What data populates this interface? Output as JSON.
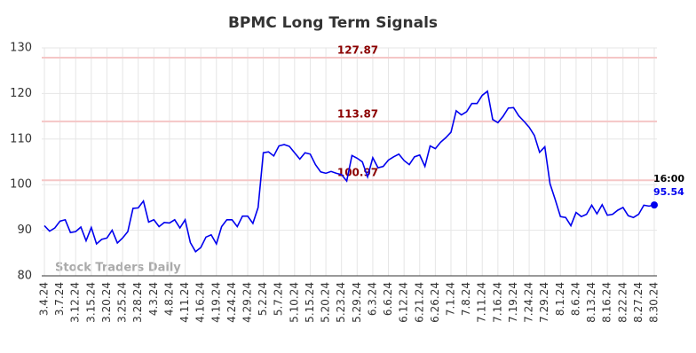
{
  "chart_data": {
    "type": "line",
    "title": "BPMC Long Term Signals",
    "categories": [
      "3.4.24",
      null,
      null,
      "3.7.24",
      null,
      null,
      "3.12.24",
      null,
      null,
      "3.15.24",
      null,
      null,
      "3.20.24",
      null,
      null,
      "3.25.24",
      null,
      null,
      "3.28.24",
      null,
      null,
      "4.3.24",
      null,
      null,
      "4.8.24",
      null,
      null,
      "4.11.24",
      null,
      null,
      "4.16.24",
      null,
      null,
      "4.19.24",
      null,
      null,
      "4.24.24",
      null,
      null,
      "4.29.24",
      null,
      null,
      "5.2.24",
      null,
      null,
      "5.7.24",
      null,
      null,
      "5.10.24",
      null,
      null,
      "5.15.24",
      null,
      null,
      "5.20.24",
      null,
      null,
      "5.23.24",
      null,
      null,
      "5.29.24",
      null,
      null,
      "6.3.24",
      null,
      null,
      "6.6.24",
      null,
      null,
      "6.12.24",
      null,
      null,
      "6.21.24",
      null,
      null,
      "6.26.24",
      null,
      null,
      "7.1.24",
      null,
      null,
      "7.8.24",
      null,
      null,
      "7.11.24",
      null,
      null,
      "7.16.24",
      null,
      null,
      "7.19.24",
      null,
      null,
      "7.24.24",
      null,
      null,
      "7.29.24",
      null,
      null,
      "8.1.24",
      null,
      null,
      "8.6.24",
      null,
      null,
      "8.13.24",
      null,
      null,
      "8.16.24",
      null,
      null,
      "8.22.24",
      null,
      null,
      "8.27.24",
      null,
      null,
      "8.30.24"
    ],
    "series": [
      {
        "name": "BPMC",
        "color": "#0000ee",
        "values": [
          91,
          89.8,
          90.5,
          92,
          92.3,
          89.5,
          89.7,
          90.7,
          87.7,
          90.6,
          87,
          88,
          88.3,
          90,
          87.2,
          88.3,
          89.7,
          94.8,
          94.9,
          96.4,
          91.8,
          92.3,
          90.8,
          91.7,
          91.6,
          92.3,
          90.5,
          92.3,
          87.3,
          85.3,
          86.2,
          88.5,
          89,
          87,
          90.8,
          92.3,
          92.3,
          90.8,
          93.1,
          93.1,
          91.5,
          95,
          107,
          107.2,
          106.3,
          108.5,
          108.8,
          108.4,
          107,
          105.6,
          107,
          106.7,
          104.4,
          102.8,
          102.5,
          102.9,
          102.5,
          102.2,
          100.8,
          106.4,
          105.8,
          105,
          101.7,
          105.9,
          103.7,
          104,
          105.4,
          106.1,
          106.7,
          105.3,
          104.4,
          106.1,
          106.5,
          104,
          108.5,
          107.9,
          109.3,
          110.3,
          111.5,
          116.2,
          115.3,
          116,
          117.8,
          117.8,
          119.6,
          120.5,
          114.3,
          113.6,
          115,
          116.8,
          116.9,
          115.1,
          113.9,
          112.6,
          110.8,
          107.1,
          108.3,
          100.2,
          96.7,
          93,
          92.8,
          91,
          93.9,
          93,
          93.5,
          95.5,
          93.6,
          95.6,
          93.3,
          93.5,
          94.4,
          95,
          93.2,
          92.8,
          93.5,
          95.5,
          95.3,
          95.54
        ]
      }
    ],
    "ylim": [
      80,
      130
    ],
    "yticks": [
      80,
      90,
      100,
      110,
      120,
      130
    ],
    "grid": true,
    "hlines": [
      {
        "value": 127.87,
        "color": "#f5c6c6",
        "label_color": "#8b0000"
      },
      {
        "value": 113.87,
        "color": "#f5c6c6",
        "label_color": "#8b0000"
      },
      {
        "value": 100.97,
        "color": "#f5c6c6",
        "label_color": "#8b0000"
      }
    ],
    "last_time": "16:00",
    "watermark": "Stock Traders Daily"
  }
}
